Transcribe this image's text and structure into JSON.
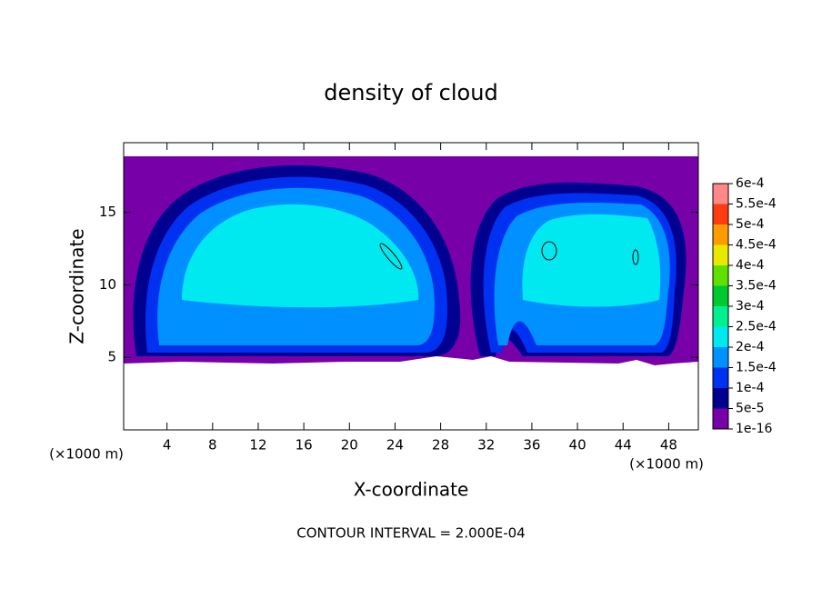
{
  "chart_data": {
    "type": "contour",
    "title": "density of cloud",
    "xlabel": "X-coordinate",
    "ylabel": "Z-coordinate",
    "x_unit": "(×1000 m)",
    "y_unit": "(×1000 m)",
    "footnote": "CONTOUR INTERVAL = 2.000E-04",
    "xlim": [
      0.2,
      50.6
    ],
    "ylim": [
      0,
      19.8
    ],
    "xticks": [
      4,
      8,
      12,
      16,
      20,
      24,
      28,
      32,
      36,
      40,
      44,
      48
    ],
    "yticks": [
      5,
      10,
      15
    ],
    "colorbar": {
      "levels": [
        1e-16,
        {
          "value": 5e-05,
          "label": "5e-5"
        },
        {
          "value": 0.0001,
          "label": "1e-4"
        },
        {
          "value": 0.00015,
          "label": "1.5e-4"
        },
        {
          "value": 0.0002,
          "label": "2e-4"
        },
        {
          "value": 0.00025,
          "label": "2.5e-4"
        },
        {
          "value": 0.0003,
          "label": "3e-4"
        },
        {
          "value": 0.00035,
          "label": "3.5e-4"
        },
        {
          "value": 0.0004,
          "label": "4e-4"
        },
        {
          "value": 0.00045,
          "label": "4.5e-4"
        },
        {
          "value": 0.0005,
          "label": "5e-4"
        },
        {
          "value": 0.00055,
          "label": "5.5e-4"
        },
        {
          "value": 0.0006,
          "label": "6e-4"
        }
      ],
      "colors": [
        "#7800a8",
        "#000090",
        "#0030f0",
        "#0090ff",
        "#00e8f0",
        "#00f090",
        "#00c830",
        "#60e000",
        "#e8e800",
        "#ff9a00",
        "#ff3c10",
        "#ff8888"
      ]
    }
  }
}
